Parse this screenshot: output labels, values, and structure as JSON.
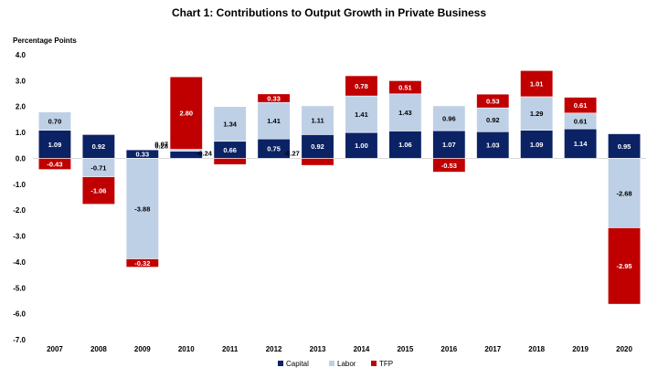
{
  "chart_data": {
    "type": "bar",
    "stacked": true,
    "title": "Chart 1: Contributions to Output Growth in Private Business",
    "ylabel": "Percentage Points",
    "xlabel": "",
    "ylim": [
      -7.0,
      4.0
    ],
    "yticks": [
      "4.0",
      "3.0",
      "2.0",
      "1.0",
      "0.0",
      "-1.0",
      "-2.0",
      "-3.0",
      "-4.0",
      "-5.0",
      "-6.0",
      "-7.0"
    ],
    "ytick_values": [
      4,
      3,
      2,
      1,
      0,
      -1,
      -2,
      -3,
      -4,
      -5,
      -6,
      -7
    ],
    "categories": [
      "2007",
      "2008",
      "2009",
      "2010",
      "2011",
      "2012",
      "2013",
      "2014",
      "2015",
      "2016",
      "2017",
      "2018",
      "2019",
      "2020"
    ],
    "series": [
      {
        "name": "Capital",
        "color": "#0b2265",
        "labelColor": "#ffffff",
        "values": [
          1.09,
          0.92,
          0.33,
          0.28,
          0.66,
          0.75,
          0.92,
          1.0,
          1.06,
          1.07,
          1.03,
          1.09,
          1.14,
          0.95
        ],
        "labels": [
          "1.09",
          "0.92",
          "0.33",
          "0.28",
          "0.66",
          "0.75",
          "0.92",
          "1.00",
          "1.06",
          "1.07",
          "1.03",
          "1.09",
          "1.14",
          "0.95"
        ]
      },
      {
        "name": "Labor",
        "color": "#bed0e6",
        "labelColor": "#000000",
        "values": [
          0.7,
          -0.71,
          -3.88,
          0.07,
          1.34,
          1.41,
          1.11,
          1.41,
          1.43,
          0.96,
          0.92,
          1.29,
          0.61,
          -2.68
        ],
        "labels": [
          "0.70",
          "-0.71",
          "-3.88",
          "0.07",
          "1.34",
          "1.41",
          "1.11",
          "1.41",
          "1.43",
          "0.96",
          "0.92",
          "1.29",
          "0.61",
          "-2.68"
        ]
      },
      {
        "name": "TFP",
        "color": "#c00000",
        "labelColor": "#ffffff",
        "values": [
          -0.43,
          -1.06,
          -0.32,
          2.8,
          -0.24,
          0.33,
          -0.27,
          0.78,
          0.51,
          -0.53,
          0.53,
          1.01,
          0.61,
          -2.95
        ],
        "labels": [
          "-0.43",
          "-1.06",
          "-0.32",
          "2.80",
          "-0.24",
          "0.33",
          "-0.27",
          "0.78",
          "0.51",
          "-0.53",
          "0.53",
          "1.01",
          "0.61",
          "-2.95"
        ]
      }
    ],
    "legend": [
      "Capital",
      "Labor",
      "TFP"
    ],
    "legend_position": "bottom",
    "grid": false
  }
}
